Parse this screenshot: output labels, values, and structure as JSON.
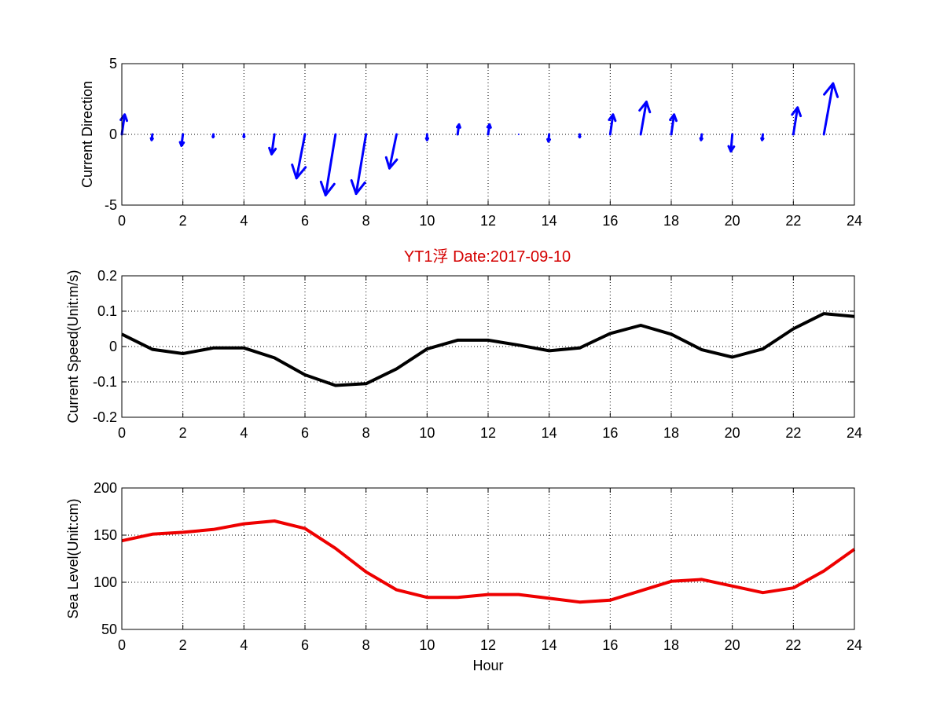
{
  "figure": {
    "title": "YT1浮    Date:2017-09-10",
    "title_color": "#d40000"
  },
  "chart_data": [
    {
      "type": "quiver",
      "ylabel": "Current Direction",
      "xlabel": "",
      "xlim": [
        0,
        24
      ],
      "ylim": [
        -5,
        5
      ],
      "xticks": [
        0,
        2,
        4,
        6,
        8,
        10,
        12,
        14,
        16,
        18,
        20,
        22,
        24
      ],
      "yticks": [
        -5,
        0,
        5
      ],
      "grid": true,
      "color": "#0000ff",
      "arrows": [
        {
          "x": 0,
          "u": 0.2,
          "v": 1.4
        },
        {
          "x": 1,
          "u": -0.05,
          "v": -0.4
        },
        {
          "x": 2,
          "u": -0.1,
          "v": -0.8
        },
        {
          "x": 3,
          "u": -0.02,
          "v": -0.2
        },
        {
          "x": 4,
          "u": 0.0,
          "v": -0.2
        },
        {
          "x": 5,
          "u": -0.2,
          "v": -1.4
        },
        {
          "x": 6,
          "u": -0.6,
          "v": -3.1
        },
        {
          "x": 7,
          "u": -0.7,
          "v": -4.3
        },
        {
          "x": 8,
          "u": -0.7,
          "v": -4.2
        },
        {
          "x": 9,
          "u": -0.5,
          "v": -2.4
        },
        {
          "x": 10,
          "u": 0.0,
          "v": -0.4
        },
        {
          "x": 11,
          "u": 0.1,
          "v": 0.7
        },
        {
          "x": 12,
          "u": 0.1,
          "v": 0.7
        },
        {
          "x": 13,
          "u": 0.0,
          "v": 0.0
        },
        {
          "x": 14,
          "u": -0.05,
          "v": -0.5
        },
        {
          "x": 15,
          "u": 0.0,
          "v": -0.2
        },
        {
          "x": 16,
          "u": 0.2,
          "v": 1.4
        },
        {
          "x": 17,
          "u": 0.4,
          "v": 2.3
        },
        {
          "x": 18,
          "u": 0.2,
          "v": 1.4
        },
        {
          "x": 19,
          "u": -0.05,
          "v": -0.4
        },
        {
          "x": 20,
          "u": -0.1,
          "v": -1.2
        },
        {
          "x": 21,
          "u": -0.05,
          "v": -0.4
        },
        {
          "x": 22,
          "u": 0.3,
          "v": 1.9
        },
        {
          "x": 23,
          "u": 0.65,
          "v": 3.6
        }
      ]
    },
    {
      "type": "line",
      "ylabel": "Current Speed(Unit:m/s)",
      "xlabel": "",
      "xlim": [
        0,
        24
      ],
      "ylim": [
        -0.2,
        0.2
      ],
      "xticks": [
        0,
        2,
        4,
        6,
        8,
        10,
        12,
        14,
        16,
        18,
        20,
        22,
        24
      ],
      "yticks": [
        -0.2,
        -0.1,
        0,
        0.1,
        0.2
      ],
      "ytick_labels": [
        "-0.2",
        "-0.1",
        "0",
        "0.1",
        "0.2"
      ],
      "grid": true,
      "color": "#000000",
      "x": [
        0,
        1,
        2,
        3,
        4,
        5,
        6,
        7,
        8,
        9,
        10,
        11,
        12,
        13,
        14,
        15,
        16,
        17,
        18,
        19,
        20,
        21,
        22,
        23,
        24
      ],
      "y": [
        0.035,
        -0.008,
        -0.02,
        -0.004,
        -0.004,
        -0.032,
        -0.08,
        -0.11,
        -0.105,
        -0.063,
        -0.007,
        0.018,
        0.018,
        0.004,
        -0.012,
        -0.004,
        0.037,
        0.06,
        0.035,
        -0.009,
        -0.03,
        -0.007,
        0.05,
        0.093,
        0.085
      ]
    },
    {
      "type": "line",
      "ylabel": "Sea Level(Unit:cm)",
      "xlabel": "Hour",
      "xlim": [
        0,
        24
      ],
      "ylim": [
        50,
        200
      ],
      "xticks": [
        0,
        2,
        4,
        6,
        8,
        10,
        12,
        14,
        16,
        18,
        20,
        22,
        24
      ],
      "yticks": [
        50,
        100,
        150,
        200
      ],
      "grid": true,
      "color": "#ee0000",
      "x": [
        0,
        1,
        2,
        3,
        4,
        5,
        6,
        7,
        8,
        9,
        10,
        11,
        12,
        13,
        14,
        15,
        16,
        17,
        18,
        19,
        20,
        21,
        22,
        23,
        24
      ],
      "y": [
        144,
        151,
        153,
        156,
        162,
        165,
        157,
        136,
        111,
        92,
        84,
        84,
        87,
        87,
        83,
        79,
        81,
        91,
        101,
        103,
        96,
        89,
        94,
        112,
        135
      ]
    }
  ]
}
